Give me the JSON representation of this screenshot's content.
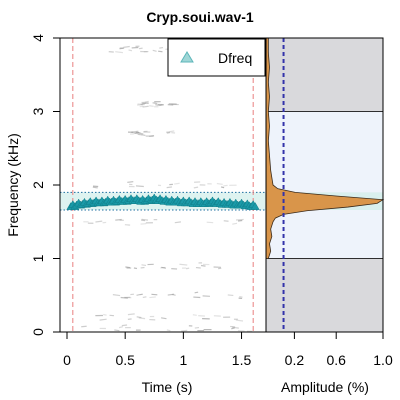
{
  "chart_data": {
    "type": "scatter",
    "title": "Cryp.soui.wav-1",
    "spectrogram": {
      "xlabel": "Time (s)",
      "ylabel": "Frequency (kHz)",
      "xlim": [
        0,
        1.65
      ],
      "ylim": [
        0,
        4
      ],
      "xticks": [
        "0",
        "0.5",
        "1",
        "1.5"
      ],
      "yticks": [
        "0",
        "1",
        "2",
        "3",
        "4"
      ],
      "legend": {
        "label": "Dfreq",
        "position": "top-right",
        "marker": "triangle"
      },
      "dominant_band_kHz": [
        1.66,
        1.9
      ],
      "selection_marks_s": [
        0.05,
        1.6
      ],
      "series": [
        {
          "name": "Dfreq",
          "x": [
            0.05,
            0.1,
            0.15,
            0.2,
            0.25,
            0.3,
            0.35,
            0.4,
            0.45,
            0.5,
            0.55,
            0.6,
            0.65,
            0.7,
            0.75,
            0.8,
            0.85,
            0.9,
            0.95,
            1.0,
            1.05,
            1.1,
            1.15,
            1.2,
            1.25,
            1.3,
            1.35,
            1.4,
            1.45,
            1.5,
            1.55,
            1.6
          ],
          "y": [
            1.72,
            1.74,
            1.75,
            1.76,
            1.77,
            1.77,
            1.78,
            1.78,
            1.79,
            1.79,
            1.8,
            1.8,
            1.79,
            1.8,
            1.81,
            1.8,
            1.79,
            1.78,
            1.78,
            1.77,
            1.77,
            1.76,
            1.76,
            1.76,
            1.77,
            1.76,
            1.75,
            1.75,
            1.74,
            1.74,
            1.73,
            1.72
          ]
        }
      ]
    },
    "spectrum": {
      "xlabel": "Amplitude (%)",
      "xticks": [
        "0.2",
        "0.6",
        "1.0"
      ],
      "xlim": [
        0,
        1.0
      ],
      "ylim": [
        0,
        4
      ],
      "peak_kHz": 1.8,
      "threshold_amplitude": 0.15,
      "shaded_bands_kHz": [
        [
          0,
          1
        ],
        [
          3,
          4
        ]
      ],
      "profile": {
        "freq_kHz": [
          1.0,
          1.1,
          1.2,
          1.3,
          1.4,
          1.5,
          1.55,
          1.6,
          1.65,
          1.7,
          1.75,
          1.8,
          1.85,
          1.9,
          1.95,
          2.0,
          2.1,
          2.2,
          2.4,
          2.6,
          2.8,
          3.0,
          3.2,
          3.4,
          3.6,
          3.8,
          4.0
        ],
        "amplitude": [
          0.02,
          0.04,
          0.03,
          0.05,
          0.04,
          0.06,
          0.08,
          0.15,
          0.35,
          0.7,
          0.95,
          1.0,
          0.6,
          0.25,
          0.1,
          0.06,
          0.05,
          0.04,
          0.03,
          0.02,
          0.03,
          0.02,
          0.03,
          0.02,
          0.03,
          0.02,
          0.02
        ]
      }
    },
    "colors": {
      "marker": "#1a9aa8",
      "spectrum_fill": "#d9954a",
      "band": "#d6f0ec",
      "selection_line": "#e98080",
      "threshold_line": "#3333aa",
      "shade": "#d9d9dc",
      "spectrum_bg": "#eef3fb"
    }
  }
}
